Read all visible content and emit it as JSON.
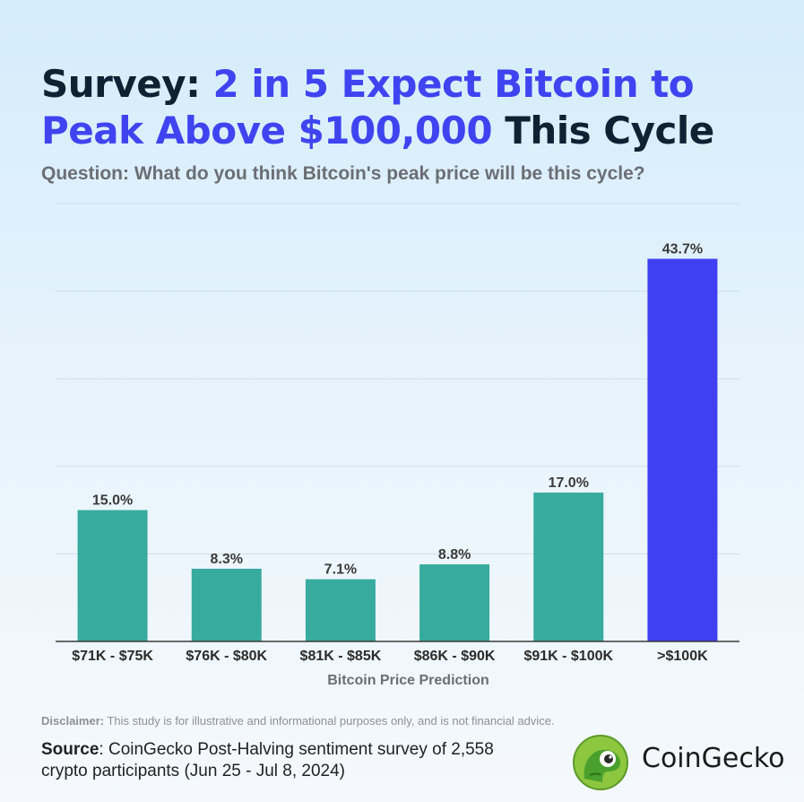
{
  "header": {
    "title_part1": "Survey: ",
    "title_highlight": "2 in 5 Expect Bitcoin to Peak Above $100,000",
    "title_part2": " This Cycle",
    "subtitle": "Question: What do you think Bitcoin's peak price will be this cycle?"
  },
  "chart_data": {
    "type": "bar",
    "categories": [
      "$71K - $75K",
      "$76K - $80K",
      "$81K - $85K",
      "$86K - $90K",
      "$91K - $100K",
      ">$100K"
    ],
    "values": [
      15.0,
      8.3,
      7.1,
      8.8,
      17.0,
      43.7
    ],
    "value_labels": [
      "15.0%",
      "8.3%",
      "7.1%",
      "8.8%",
      "17.0%",
      "43.7%"
    ],
    "xlabel": "Bitcoin Price Prediction",
    "ylabel": "",
    "ylim": [
      0,
      50
    ],
    "grid": true,
    "colors": [
      "#38ab9f",
      "#38ab9f",
      "#38ab9f",
      "#38ab9f",
      "#38ab9f",
      "#4040f2"
    ]
  },
  "footer": {
    "disclaimer_label": "Disclaimer:",
    "disclaimer_text": " This study is for illustrative and informational purposes only, and is not financial advice.",
    "source_label": "Source",
    "source_text": ": CoinGecko Post-Halving sentiment survey of 2,558 crypto participants (Jun 25 - Jul 8, 2024)",
    "brand_name": "CoinGecko",
    "logo_icon": "gecko-logo-icon"
  }
}
